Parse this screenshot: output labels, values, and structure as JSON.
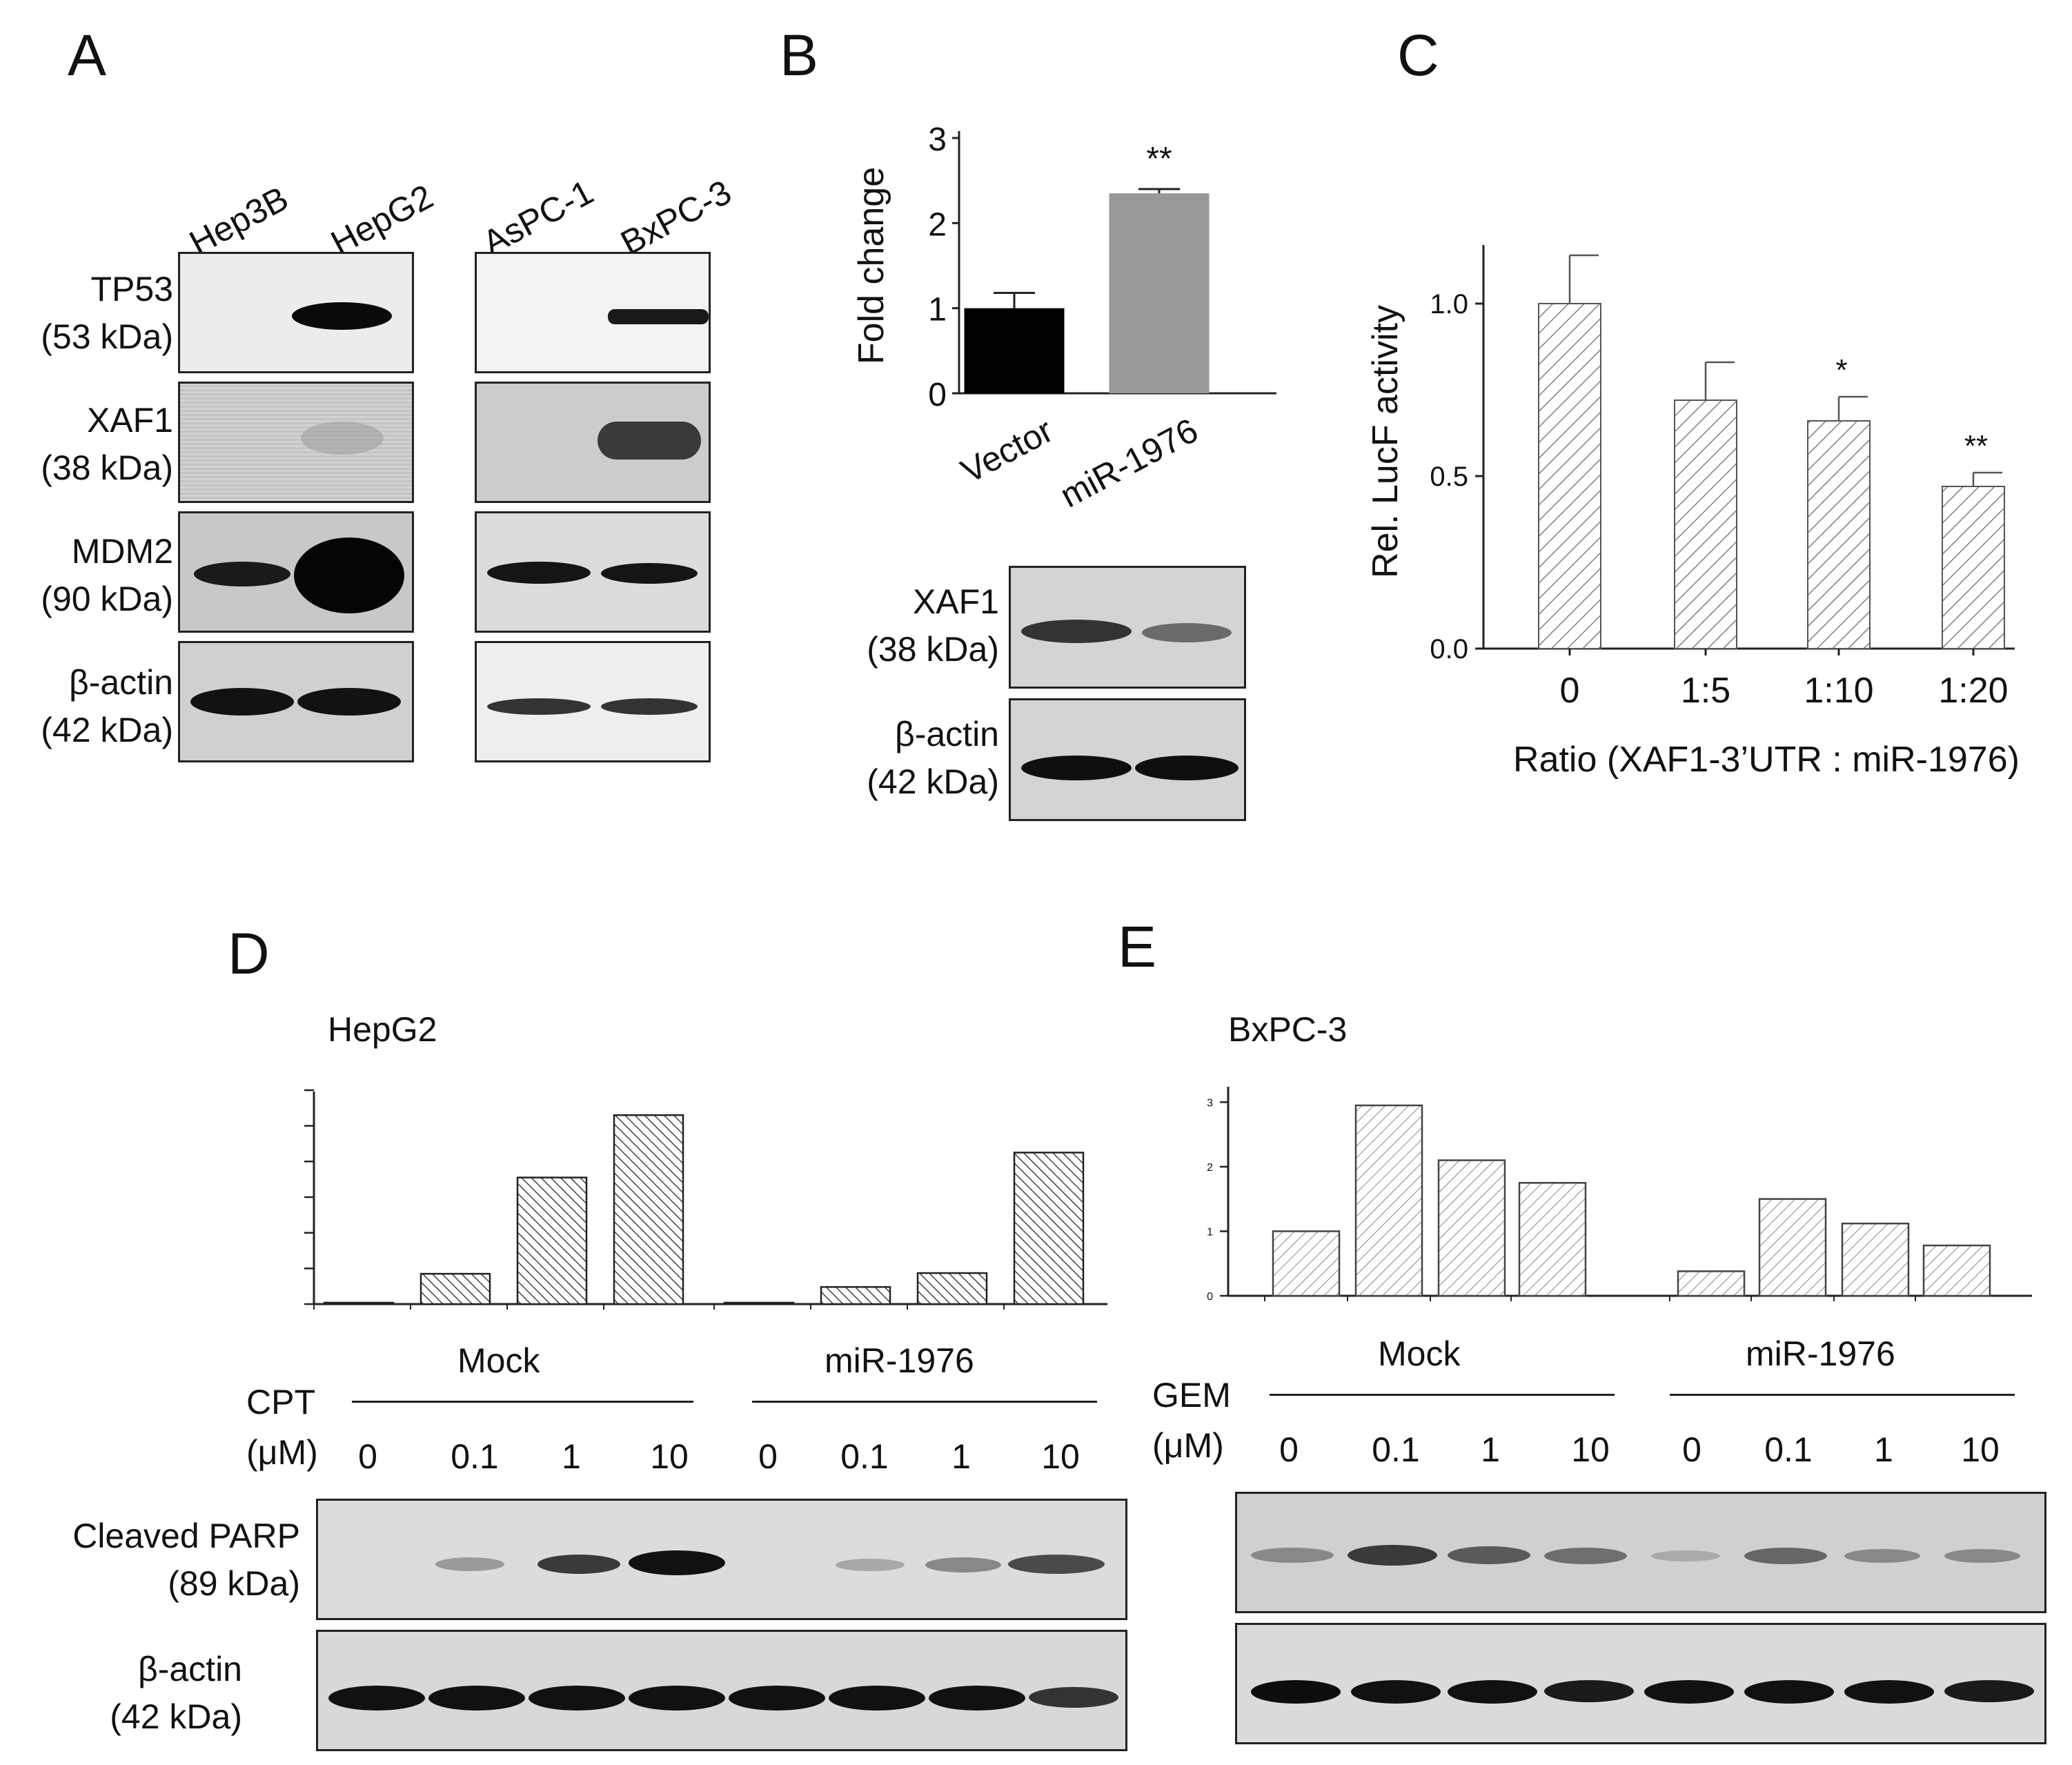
{
  "panels": {
    "A": {
      "letter": "A",
      "lanes_left": [
        "Hep3B",
        "HepG2"
      ],
      "lanes_right": [
        "AsPC-1",
        "BxPC-3"
      ],
      "proteins": [
        {
          "name": "TP53",
          "mw": "(53 kDa)"
        },
        {
          "name": "XAF1",
          "mw": "(38 kDa)"
        },
        {
          "name": "MDM2",
          "mw": "(90 kDa)"
        },
        {
          "name": "β-actin",
          "mw": "(42 kDa)"
        }
      ]
    },
    "B": {
      "letter": "B",
      "blot_proteins": [
        {
          "name": "XAF1",
          "mw": "(38 kDa)"
        },
        {
          "name": "β-actin",
          "mw": "(42 kDa)"
        }
      ]
    },
    "C": {
      "letter": "C"
    },
    "D": {
      "letter": "D",
      "cell_line": "HepG2",
      "treatment": "CPT",
      "unit": "(μM)",
      "groups": [
        "Mock",
        "miR-1976"
      ],
      "doses": [
        "0",
        "0.1",
        "1",
        "10",
        "0",
        "0.1",
        "1",
        "10"
      ],
      "blot_proteins": [
        {
          "name": "Cleaved PARP",
          "mw": "(89 kDa)"
        },
        {
          "name": "β-actin",
          "mw": "(42 kDa)"
        }
      ]
    },
    "E": {
      "letter": "E",
      "cell_line": "BxPC-3",
      "treatment": "GEM",
      "unit": "(μM)",
      "groups": [
        "Mock",
        "miR-1976"
      ],
      "doses": [
        "0",
        "0.1",
        "1",
        "10",
        "0",
        "0.1",
        "1",
        "10"
      ]
    }
  },
  "chart_data": [
    {
      "panel": "B",
      "type": "bar",
      "categories": [
        "Vector",
        "miR-1976"
      ],
      "values": [
        1.0,
        2.35
      ],
      "errors": [
        0.18,
        0.05
      ],
      "annotations": [
        "",
        "**"
      ],
      "ylabel": "Fold change",
      "ylim": [
        0,
        3
      ],
      "yticks": [
        "0",
        "1",
        "2",
        "3"
      ],
      "colors": [
        "#000000",
        "#999999"
      ]
    },
    {
      "panel": "C",
      "type": "bar",
      "categories": [
        "0",
        "1:5",
        "1:10",
        "1:20"
      ],
      "values": [
        1.0,
        0.72,
        0.66,
        0.47
      ],
      "errors": [
        0.14,
        0.11,
        0.07,
        0.04
      ],
      "annotations": [
        "",
        "",
        "*",
        "**"
      ],
      "ylabel": "Rel. LucF activity",
      "xlabel": "Ratio (XAF1-3’UTR : miR-1976)",
      "ylim": [
        0,
        1.2
      ],
      "yticks": [
        "0.0",
        "0.5",
        "1.0"
      ]
    },
    {
      "panel": "D",
      "type": "bar",
      "values": [
        0.04,
        0.85,
        3.55,
        5.3,
        0.04,
        0.48,
        0.87,
        4.25
      ],
      "ylim": [
        0,
        6
      ]
    },
    {
      "panel": "E",
      "type": "bar",
      "values": [
        1.0,
        2.95,
        2.1,
        1.75,
        0.38,
        1.5,
        1.12,
        0.78
      ],
      "ylim": [
        0,
        3.1
      ],
      "yticks": [
        "0",
        "1",
        "2",
        "3"
      ]
    }
  ]
}
